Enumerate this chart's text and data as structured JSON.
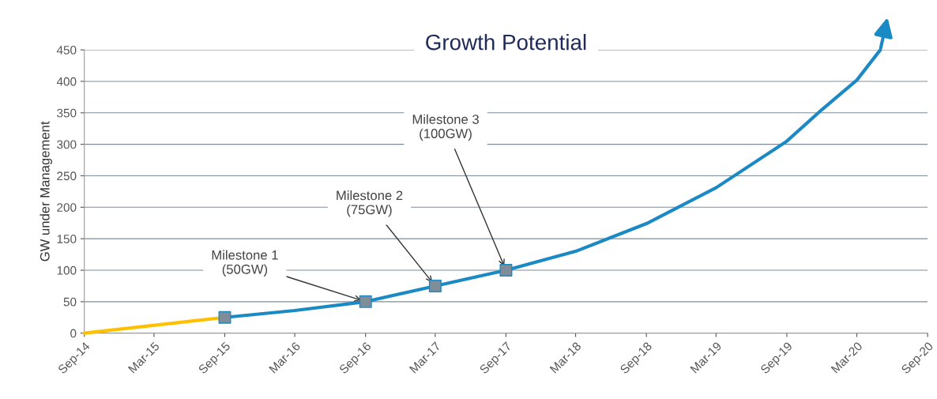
{
  "chart_data": {
    "type": "line",
    "title": "Growth Potential",
    "ylabel": "GW under Management",
    "xlim": [
      "2014-09",
      "2020-09"
    ],
    "xticks": [
      {
        "value": "2014-09",
        "label": "Sep-14"
      },
      {
        "value": "2015-03",
        "label": "Mar-15"
      },
      {
        "value": "2015-09",
        "label": "Sep-15"
      },
      {
        "value": "2016-03",
        "label": "Mar-16"
      },
      {
        "value": "2016-09",
        "label": "Sep-16"
      },
      {
        "value": "2017-03",
        "label": "Mar-17"
      },
      {
        "value": "2017-09",
        "label": "Sep-17"
      },
      {
        "value": "2018-03",
        "label": "Mar-18"
      },
      {
        "value": "2018-09",
        "label": "Sep-18"
      },
      {
        "value": "2019-03",
        "label": "Mar-19"
      },
      {
        "value": "2019-09",
        "label": "Sep-19"
      },
      {
        "value": "2020-03",
        "label": "Mar-20"
      },
      {
        "value": "2020-09",
        "label": "Sep-20"
      }
    ],
    "ylim": [
      0,
      450
    ],
    "yticks": [
      0,
      50,
      100,
      150,
      200,
      250,
      300,
      350,
      400,
      450
    ],
    "grid": "y",
    "legend": false,
    "series": [
      {
        "color": "#ffc000",
        "marker": "none",
        "x": [
          "2014-09",
          "2015-09"
        ],
        "values": [
          0,
          25
        ]
      },
      {
        "color": "#1b8ac4",
        "marker": "none",
        "x": [
          "2015-09",
          "2016-03",
          "2016-09",
          "2017-03",
          "2017-09",
          "2018-03",
          "2018-09",
          "2019-03",
          "2019-09",
          "2019-12",
          "2020-03",
          "2020-05"
        ],
        "values": [
          25,
          36,
          50,
          75,
          100,
          130,
          174,
          231,
          305,
          355,
          402,
          450
        ]
      },
      {
        "color": "#7f8c99",
        "type": "scatter",
        "marker": "square",
        "x": [
          "2015-09",
          "2016-09",
          "2017-03",
          "2017-09"
        ],
        "values": [
          25,
          50,
          75,
          100
        ]
      }
    ],
    "annotations": [
      {
        "text": "Milestone 1\n(50GW)",
        "x": "2016-09",
        "y": 50
      },
      {
        "text": "Milestone 2\n(75GW)",
        "x": "2017-03",
        "y": 75
      },
      {
        "text": "Milestone 3\n(100GW)",
        "x": "2017-09",
        "y": 100
      }
    ]
  }
}
